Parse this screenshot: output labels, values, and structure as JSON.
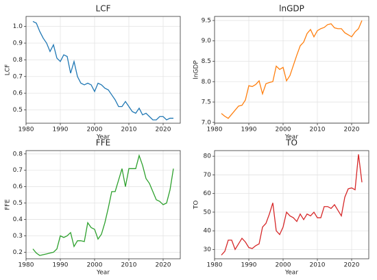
{
  "chart_data": [
    {
      "type": "line",
      "title": "LCF",
      "xlabel": "Year",
      "ylabel": "LCF",
      "color": "#1f77b4",
      "grid": true,
      "x": [
        1982,
        1983,
        1984,
        1985,
        1986,
        1987,
        1988,
        1989,
        1990,
        1991,
        1992,
        1993,
        1994,
        1995,
        1996,
        1997,
        1998,
        1999,
        2000,
        2001,
        2002,
        2003,
        2004,
        2005,
        2006,
        2007,
        2008,
        2009,
        2010,
        2011,
        2012,
        2013,
        2014,
        2015,
        2016,
        2017,
        2018,
        2019,
        2020,
        2021,
        2022,
        2023
      ],
      "values": [
        1.03,
        1.02,
        0.97,
        0.93,
        0.9,
        0.85,
        0.89,
        0.81,
        0.79,
        0.83,
        0.82,
        0.72,
        0.79,
        0.7,
        0.66,
        0.65,
        0.66,
        0.65,
        0.61,
        0.66,
        0.65,
        0.63,
        0.62,
        0.59,
        0.56,
        0.52,
        0.52,
        0.55,
        0.52,
        0.49,
        0.48,
        0.51,
        0.47,
        0.48,
        0.46,
        0.44,
        0.44,
        0.46,
        0.46,
        0.44,
        0.45,
        0.45
      ],
      "xlim": [
        1980,
        2025
      ],
      "xticks": [
        1980,
        1990,
        2000,
        2010,
        2020
      ],
      "ylim": [
        0.42,
        1.06
      ],
      "yticks": [
        0.5,
        0.6,
        0.7,
        0.8,
        0.9,
        {
          "value": 1,
          "label": "1.0"
        }
      ]
    },
    {
      "type": "line",
      "title": "lnGDP",
      "xlabel": "Year",
      "ylabel": "lnGDP",
      "color": "#ff7f0e",
      "grid": true,
      "x": [
        1982,
        1983,
        1984,
        1985,
        1986,
        1987,
        1988,
        1989,
        1990,
        1991,
        1992,
        1993,
        1994,
        1995,
        1996,
        1997,
        1998,
        1999,
        2000,
        2001,
        2002,
        2003,
        2004,
        2005,
        2006,
        2007,
        2008,
        2009,
        2010,
        2011,
        2012,
        2013,
        2014,
        2015,
        2016,
        2017,
        2018,
        2019,
        2020,
        2021,
        2022,
        2023
      ],
      "values": [
        7.22,
        7.15,
        7.1,
        7.2,
        7.3,
        7.4,
        7.42,
        7.55,
        7.9,
        7.88,
        7.93,
        8.02,
        7.7,
        7.95,
        7.98,
        8.0,
        8.38,
        8.3,
        8.35,
        8.02,
        8.15,
        8.4,
        8.65,
        8.88,
        8.97,
        9.18,
        9.28,
        9.1,
        9.25,
        9.3,
        9.33,
        9.4,
        9.42,
        9.32,
        9.3,
        9.3,
        9.2,
        9.15,
        9.1,
        9.22,
        9.3,
        9.5
      ],
      "xlim": [
        1980,
        2025
      ],
      "xticks": [
        1980,
        1990,
        2000,
        2010,
        2020
      ],
      "ylim": [
        6.98,
        9.6
      ],
      "yticks": [
        {
          "value": 7,
          "label": "7.0"
        },
        7.5,
        {
          "value": 8,
          "label": "8.0"
        },
        8.5,
        {
          "value": 9,
          "label": "9.0"
        },
        9.5
      ]
    },
    {
      "type": "line",
      "title": "FFE",
      "xlabel": "Year",
      "ylabel": "FFE",
      "color": "#2ca02c",
      "grid": true,
      "x": [
        1982,
        1983,
        1984,
        1985,
        1986,
        1987,
        1988,
        1989,
        1990,
        1991,
        1992,
        1993,
        1994,
        1995,
        1996,
        1997,
        1998,
        1999,
        2000,
        2001,
        2002,
        2003,
        2004,
        2005,
        2006,
        2007,
        2008,
        2009,
        2010,
        2011,
        2012,
        2013,
        2014,
        2015,
        2016,
        2017,
        2018,
        2019,
        2020,
        2021,
        2022,
        2023
      ],
      "values": [
        0.22,
        0.195,
        0.18,
        0.185,
        0.19,
        0.195,
        0.2,
        0.22,
        0.3,
        0.29,
        0.3,
        0.32,
        0.235,
        0.27,
        0.27,
        0.265,
        0.38,
        0.35,
        0.34,
        0.28,
        0.31,
        0.38,
        0.47,
        0.57,
        0.57,
        0.64,
        0.71,
        0.6,
        0.71,
        0.71,
        0.71,
        0.79,
        0.73,
        0.65,
        0.62,
        0.57,
        0.52,
        0.51,
        0.49,
        0.5,
        0.58,
        0.71
      ],
      "xlim": [
        1980,
        2025
      ],
      "xticks": [
        1980,
        1990,
        2000,
        2010,
        2020
      ],
      "ylim": [
        0.16,
        0.82
      ],
      "yticks": [
        0.2,
        0.3,
        0.4,
        0.5,
        0.6,
        0.7,
        0.8
      ]
    },
    {
      "type": "line",
      "title": "TO",
      "xlabel": "Year",
      "ylabel": "TO",
      "color": "#d62728",
      "grid": true,
      "x": [
        1982,
        1983,
        1984,
        1985,
        1986,
        1987,
        1988,
        1989,
        1990,
        1991,
        1992,
        1993,
        1994,
        1995,
        1996,
        1997,
        1998,
        1999,
        2000,
        2001,
        2002,
        2003,
        2004,
        2005,
        2006,
        2007,
        2008,
        2009,
        2010,
        2011,
        2012,
        2013,
        2014,
        2015,
        2016,
        2017,
        2018,
        2019,
        2020,
        2021,
        2022,
        2023
      ],
      "values": [
        27,
        29,
        35,
        35,
        30,
        33,
        36,
        34,
        31,
        30.5,
        32,
        33,
        42,
        44,
        49,
        55,
        40,
        38,
        42,
        50,
        48,
        47,
        45,
        49,
        46,
        49,
        48,
        50,
        47,
        47,
        53,
        53,
        52,
        54,
        51,
        48,
        58,
        62.5,
        63,
        62,
        81,
        66
      ],
      "xlim": [
        1980,
        2025
      ],
      "xticks": [
        1980,
        1990,
        2000,
        2010,
        2020
      ],
      "ylim": [
        25,
        83
      ],
      "yticks": [
        30,
        40,
        50,
        60,
        70,
        80
      ]
    }
  ]
}
